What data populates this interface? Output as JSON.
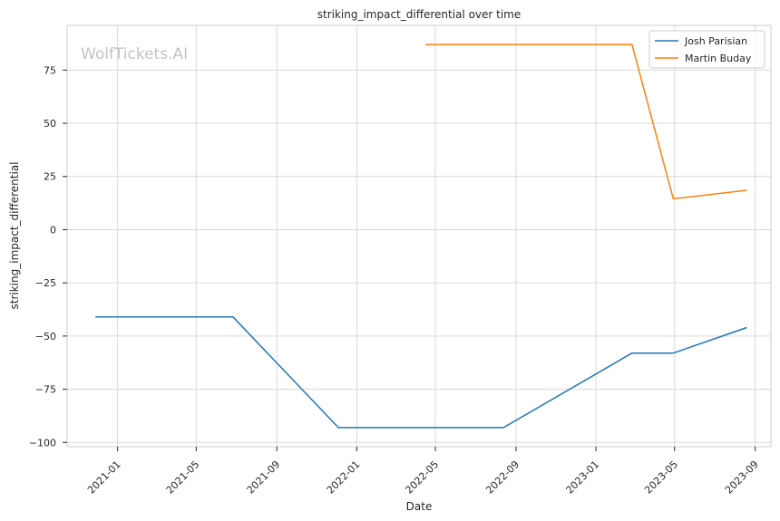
{
  "watermark": "WolfTickets.AI",
  "chart_data": {
    "type": "line",
    "title": "striking_impact_differential over time",
    "xlabel": "Date",
    "ylabel": "striking_impact_differential",
    "x_ticks": [
      "2021-01",
      "2021-05",
      "2021-09",
      "2022-01",
      "2022-05",
      "2022-09",
      "2023-01",
      "2023-05",
      "2023-09"
    ],
    "y_ticks": [
      75,
      50,
      25,
      0,
      -25,
      -50,
      -75,
      -100
    ],
    "y_tick_labels": [
      "75",
      "50",
      "25",
      "0",
      "−25",
      "−50",
      "−75",
      "−100"
    ],
    "xlim": [
      "2020-10-16",
      "2023-09-25"
    ],
    "ylim": [
      -102,
      96
    ],
    "grid": true,
    "legend_position": "top-right",
    "series": [
      {
        "name": "Josh Parisian",
        "color": "#1f77b4",
        "x": [
          "2020-11-28",
          "2021-06-26",
          "2021-12-04",
          "2022-08-13",
          "2023-02-25",
          "2023-04-29",
          "2023-08-19"
        ],
        "y": [
          -41,
          -41,
          -93,
          -93,
          -58,
          -58,
          -46
        ]
      },
      {
        "name": "Martin Buday",
        "color": "#ff7f0e",
        "x": [
          "2022-04-16",
          "2023-02-25",
          "2023-04-29",
          "2023-08-19"
        ],
        "y": [
          87,
          87,
          14.5,
          18.5
        ]
      }
    ]
  }
}
